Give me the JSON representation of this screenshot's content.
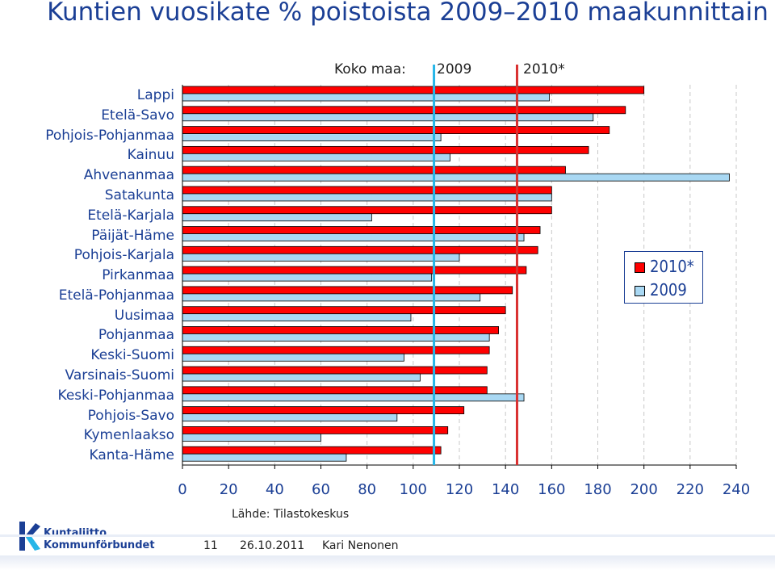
{
  "title": "Kuntien vuosikate % poistoista 2009–2010 maakunnittain",
  "koko_maa": {
    "label": "Koko maa:",
    "y2009_label": "2009",
    "y2010_label": "2010*",
    "value_2009": 109,
    "value_2010": 145
  },
  "chart_data": {
    "type": "bar",
    "orientation": "horizontal",
    "categories": [
      "Lappi",
      "Etelä-Savo",
      "Pohjois-Pohjanmaa",
      "Kainuu",
      "Ahvenanmaa",
      "Satakunta",
      "Etelä-Karjala",
      "Päijät-Häme",
      "Pohjois-Karjala",
      "Pirkanmaa",
      "Etelä-Pohjanmaa",
      "Uusimaa",
      "Pohjanmaa",
      "Keski-Suomi",
      "Varsinais-Suomi",
      "Keski-Pohjanmaa",
      "Pohjois-Savo",
      "Kymenlaakso",
      "Kanta-Häme"
    ],
    "series": [
      {
        "name": "2010*",
        "color": "#ff0000",
        "values": [
          200,
          192,
          185,
          176,
          166,
          160,
          160,
          155,
          154,
          149,
          143,
          140,
          137,
          133,
          132,
          132,
          122,
          115,
          112
        ]
      },
      {
        "name": "2009",
        "color": "#a9d8f3",
        "values": [
          159,
          178,
          112,
          116,
          237,
          160,
          82,
          148,
          120,
          108,
          129,
          99,
          133,
          96,
          103,
          148,
          93,
          60,
          71
        ]
      }
    ],
    "xlim": [
      0,
      240
    ],
    "xticks": [
      0,
      20,
      40,
      60,
      80,
      100,
      120,
      140,
      160,
      180,
      200,
      220,
      240
    ],
    "grid": "vertical-dashed",
    "legend": "right"
  },
  "legend": {
    "item_2010": "2010*",
    "item_2009": "2009"
  },
  "source": "Lähde: Tilastokeskus",
  "footer": {
    "page": "11",
    "date": "26.10.2011",
    "author": "Kari Nenonen"
  },
  "logo": {
    "line1": "Kuntaliitto",
    "line2": "Kommunförbundet"
  },
  "colors": {
    "title": "#1b3f95",
    "bar_2010": "#ff0000",
    "bar_2009": "#a9d8f3",
    "line_2009": "#26b6e8",
    "line_2010": "#d93030"
  }
}
